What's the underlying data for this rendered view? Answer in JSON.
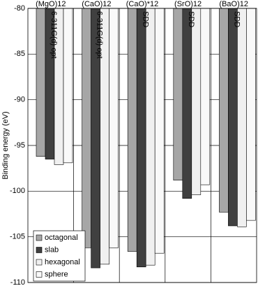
{
  "chart_data": {
    "type": "bar",
    "y_label": "Binding energy (eV)",
    "categories": [
      "(MgO)12",
      "(CaO)12",
      "(CaO)*12",
      "(SrO)12",
      "(BaO)12"
    ],
    "annotations": [
      "6-311G(d) opt",
      "6-311G(d) opt",
      "SDD",
      "SDD",
      "SDD"
    ],
    "series": [
      {
        "name": "octagonal",
        "color": "#a6a6a6",
        "values": [
          -96.2,
          -106.2,
          -106.6,
          -98.8,
          -102.3
        ]
      },
      {
        "name": "slab",
        "color": "#404040",
        "values": [
          -96.5,
          -108.4,
          -108.3,
          -100.8,
          -103.8
        ]
      },
      {
        "name": "hexagonal",
        "color": "#f0f0f0",
        "values": [
          -97.1,
          -108.0,
          -108.1,
          -100.4,
          -103.9
        ]
      },
      {
        "name": "sphere",
        "color": "#f9f9f9",
        "values": [
          -96.9,
          -106.2,
          -106.8,
          -99.3,
          -103.2
        ]
      }
    ],
    "ylim": [
      -110,
      -80
    ],
    "yticks": [
      -110,
      -105,
      -100,
      -95,
      -90,
      -85,
      -80
    ],
    "grid": true,
    "legend": "lower left"
  }
}
